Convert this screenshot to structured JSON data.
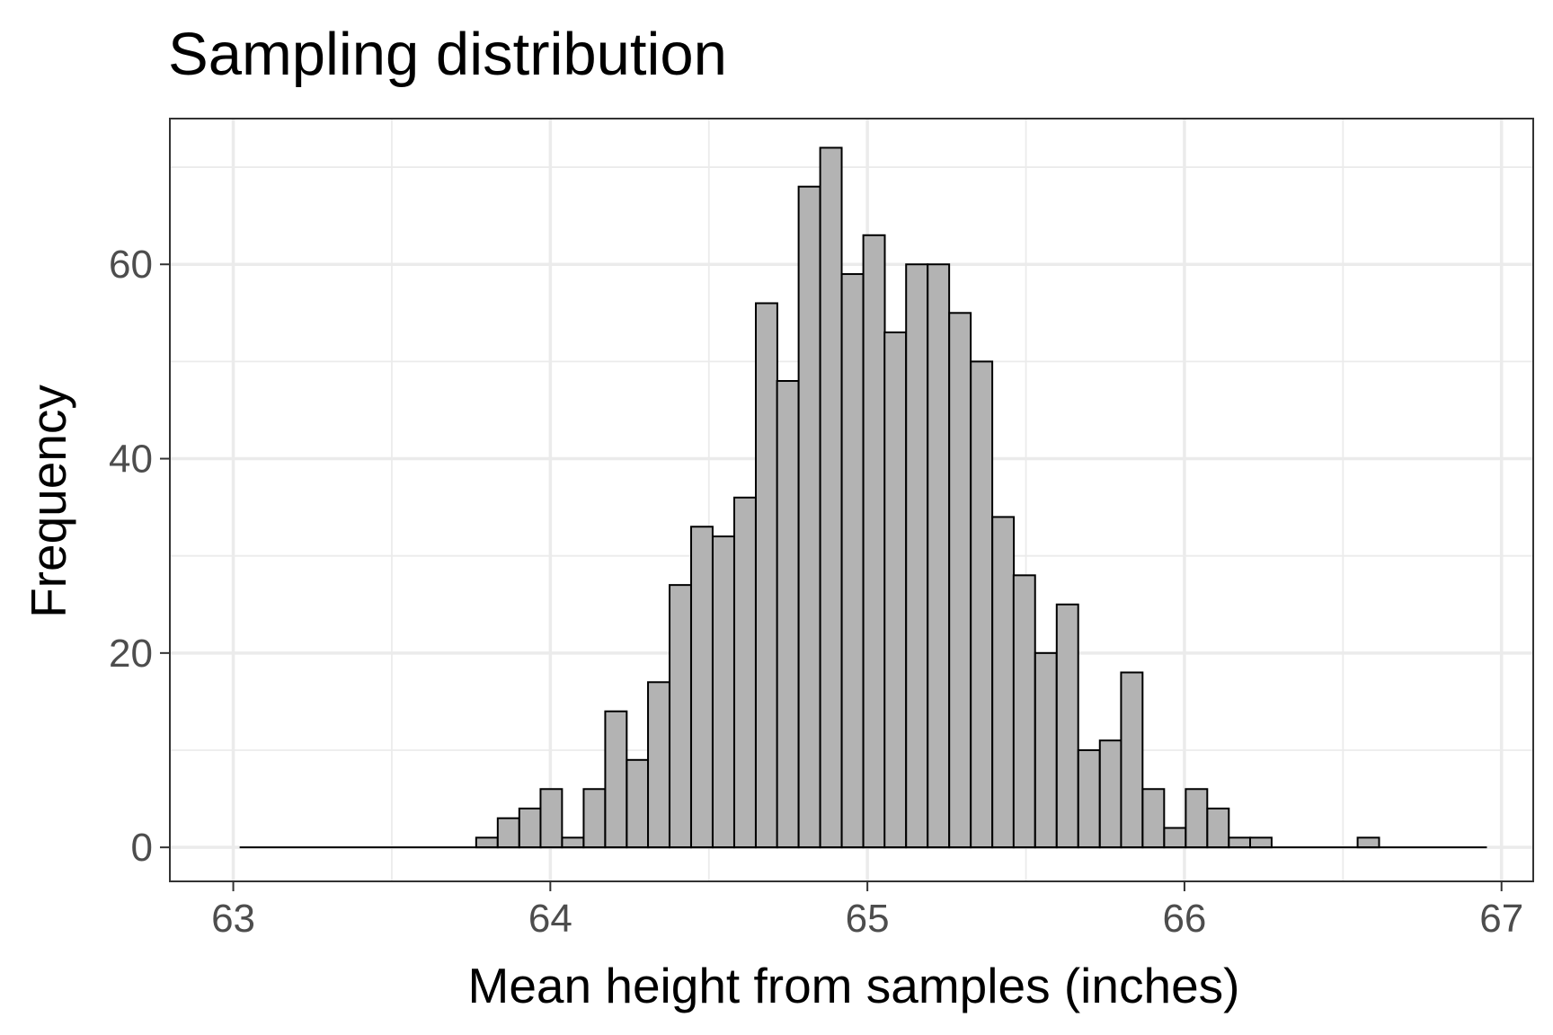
{
  "chart_data": {
    "type": "bar",
    "title": "Sampling distribution",
    "xlabel": "Mean height from samples (inches)",
    "ylabel": "Frequency",
    "xlim": [
      62.8,
      67.1
    ],
    "ylim": [
      -3.5,
      75
    ],
    "x_ticks": [
      63,
      64,
      65,
      66,
      67
    ],
    "y_ticks": [
      0,
      20,
      40,
      60
    ],
    "grid": true,
    "bar_fill": "#b3b3b3",
    "bar_outline": "#000000",
    "bin_width": 0.0678,
    "bins_start": 63.02,
    "bins": [
      {
        "x": 63.054,
        "count": 0
      },
      {
        "x": 63.122,
        "count": 0
      },
      {
        "x": 63.19,
        "count": 0
      },
      {
        "x": 63.257,
        "count": 0
      },
      {
        "x": 63.325,
        "count": 0
      },
      {
        "x": 63.393,
        "count": 0
      },
      {
        "x": 63.461,
        "count": 0
      },
      {
        "x": 63.529,
        "count": 0
      },
      {
        "x": 63.596,
        "count": 0
      },
      {
        "x": 63.664,
        "count": 0
      },
      {
        "x": 63.732,
        "count": 0
      },
      {
        "x": 63.8,
        "count": 1
      },
      {
        "x": 63.868,
        "count": 3
      },
      {
        "x": 63.936,
        "count": 4
      },
      {
        "x": 64.003,
        "count": 6
      },
      {
        "x": 64.071,
        "count": 1
      },
      {
        "x": 64.139,
        "count": 6
      },
      {
        "x": 64.207,
        "count": 14
      },
      {
        "x": 64.275,
        "count": 9
      },
      {
        "x": 64.342,
        "count": 17
      },
      {
        "x": 64.41,
        "count": 27
      },
      {
        "x": 64.478,
        "count": 33
      },
      {
        "x": 64.546,
        "count": 32
      },
      {
        "x": 64.614,
        "count": 36
      },
      {
        "x": 64.682,
        "count": 56
      },
      {
        "x": 64.749,
        "count": 48
      },
      {
        "x": 64.817,
        "count": 68
      },
      {
        "x": 64.885,
        "count": 72
      },
      {
        "x": 64.953,
        "count": 59
      },
      {
        "x": 65.021,
        "count": 63
      },
      {
        "x": 65.088,
        "count": 53
      },
      {
        "x": 65.156,
        "count": 60
      },
      {
        "x": 65.224,
        "count": 60
      },
      {
        "x": 65.292,
        "count": 55
      },
      {
        "x": 65.36,
        "count": 50
      },
      {
        "x": 65.428,
        "count": 34
      },
      {
        "x": 65.495,
        "count": 28
      },
      {
        "x": 65.563,
        "count": 20
      },
      {
        "x": 65.631,
        "count": 25
      },
      {
        "x": 65.699,
        "count": 10
      },
      {
        "x": 65.767,
        "count": 11
      },
      {
        "x": 65.834,
        "count": 18
      },
      {
        "x": 65.902,
        "count": 6
      },
      {
        "x": 65.97,
        "count": 2
      },
      {
        "x": 66.038,
        "count": 6
      },
      {
        "x": 66.106,
        "count": 4
      },
      {
        "x": 66.174,
        "count": 1
      },
      {
        "x": 66.241,
        "count": 1
      },
      {
        "x": 66.309,
        "count": 0
      },
      {
        "x": 66.377,
        "count": 0
      },
      {
        "x": 66.445,
        "count": 0
      },
      {
        "x": 66.513,
        "count": 0
      },
      {
        "x": 66.58,
        "count": 1
      },
      {
        "x": 66.648,
        "count": 0
      },
      {
        "x": 66.716,
        "count": 0
      },
      {
        "x": 66.784,
        "count": 0
      },
      {
        "x": 66.852,
        "count": 0
      },
      {
        "x": 66.92,
        "count": 0
      }
    ]
  }
}
